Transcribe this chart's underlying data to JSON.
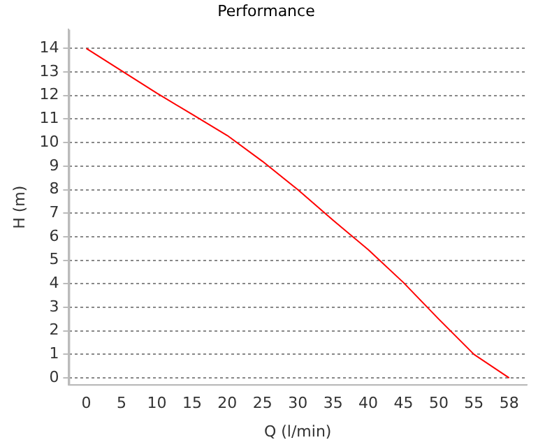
{
  "chart_data": {
    "type": "line",
    "title": "Performance",
    "xlabel": "Q (l/min)",
    "ylabel": "H (m)",
    "categories": [
      "0",
      "5",
      "10",
      "15",
      "20",
      "25",
      "30",
      "35",
      "40",
      "45",
      "50",
      "55",
      "58"
    ],
    "series": [
      {
        "color": "#ff0000",
        "values": [
          14,
          13.05,
          12.1,
          11.2,
          10.3,
          9.2,
          8,
          6.7,
          5.45,
          4.05,
          2.5,
          1,
          0
        ]
      }
    ],
    "ylim": [
      -0.3,
      14.8
    ],
    "yticks": [
      0,
      1,
      2,
      3,
      4,
      5,
      6,
      7,
      8,
      9,
      10,
      11,
      12,
      13,
      14
    ],
    "grid": "y",
    "legend": false,
    "marker": "none",
    "line_style": "solid"
  }
}
